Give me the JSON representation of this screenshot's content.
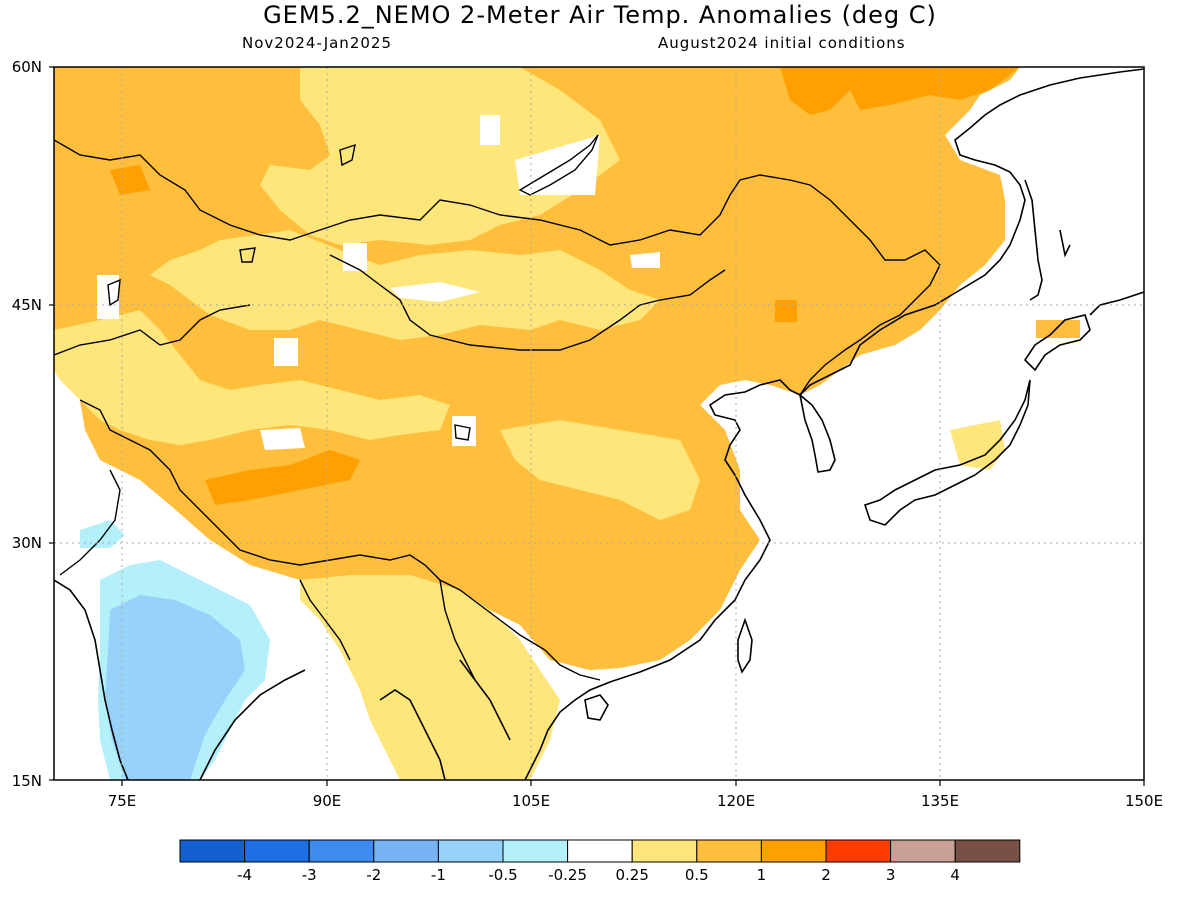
{
  "title": "GEM5.2_NEMO 2-Meter Air Temp. Anomalies (deg C)",
  "period": "Nov2024-Jan2025",
  "init": "August2024 initial conditions",
  "axes": {
    "lat_labels": [
      "60N",
      "45N",
      "30N",
      "15N"
    ],
    "lon_labels": [
      "75E",
      "90E",
      "105E",
      "120E",
      "135E",
      "150E"
    ]
  },
  "legend": {
    "labels": [
      "-4",
      "-3",
      "-2",
      "-1",
      "-0.5",
      "-0.25",
      "0.25",
      "0.5",
      "1",
      "2",
      "3",
      "4"
    ],
    "colors": [
      "#1560d0",
      "#1e6ee6",
      "#3c8cf0",
      "#78b4f4",
      "#96d2fa",
      "#b4f0fa",
      "#ffffff",
      "#ffe67a",
      "#ffbe3c",
      "#ffa000",
      "#ff3c00",
      "#c8a096",
      "#785046"
    ]
  }
}
